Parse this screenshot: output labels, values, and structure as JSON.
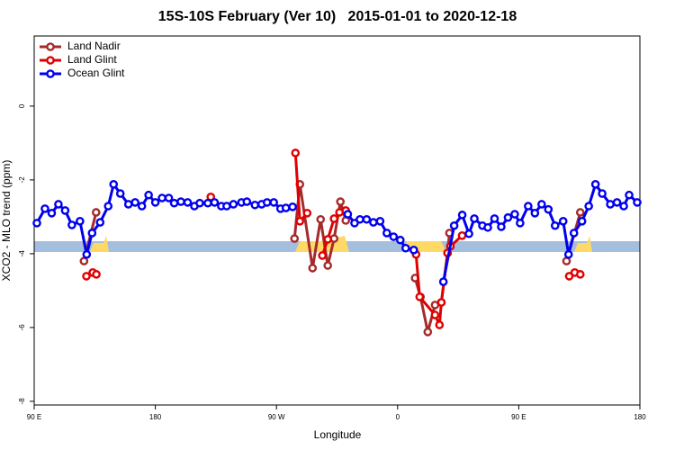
{
  "chart_data": {
    "type": "line",
    "title": "15S-10S February (Ver 10)   2015-01-01 to 2020-12-18",
    "xlabel": "Longitude",
    "ylabel": "XCO2 - MLO trend (ppm)",
    "xlim": [
      90,
      540
    ],
    "ylim": [
      -8.1,
      1.9
    ],
    "xticks": [
      {
        "value": 90,
        "label": "90 E"
      },
      180,
      {
        "value": 270,
        "label": "90 W"
      },
      {
        "value": 360,
        "label": "0"
      },
      {
        "value": 450,
        "label": "90 E"
      },
      {
        "value": 540,
        "label": "180"
      }
    ],
    "yticks": [
      0,
      -2,
      -4,
      -6,
      -8
    ],
    "legend": "top-left",
    "series": [
      {
        "name": "Land Nadir",
        "color": "#a52a2a",
        "x": [
          127,
          136,
          null,
          283.4,
          287.4,
          296.8,
          302.8,
          308.1,
          312.8,
          317.5,
          321.5,
          null,
          373,
          377,
          382.4,
          387.8,
          392.5,
          397.1,
          398.5,
          null,
          485.5,
          495.7
        ],
        "values": [
          -4.2,
          -2.88,
          null,
          -3.59,
          -2.12,
          -4.39,
          -3.07,
          -4.32,
          -3.59,
          -2.59,
          -3.1,
          null,
          -4.66,
          -5.17,
          -6.12,
          -5.39,
          -5.32,
          -3.98,
          -3.44,
          null,
          -4.2,
          -2.88
        ]
      },
      {
        "name": "Land Glint",
        "color": "#e00000",
        "x": [
          128.8,
          133.5,
          136.2,
          null,
          221.2,
          null,
          284.1,
          287.4,
          292.8,
          null,
          304.1,
          308.1,
          312.8,
          316.8,
          321.5,
          null,
          373.7,
          376.4,
          387.8,
          391.1,
          392.5,
          397.1,
          399.2,
          407.9,
          null,
          487.5,
          491.6,
          495.7
        ],
        "values": [
          -4.61,
          -4.51,
          -4.56,
          null,
          -2.46,
          null,
          -1.27,
          -3.12,
          -2.9,
          null,
          -4.05,
          -3.61,
          -3.05,
          -2.88,
          -2.83,
          null,
          -4.02,
          -5.17,
          -5.66,
          -5.93,
          -5.32,
          -3.98,
          -3.8,
          -3.51,
          null,
          -4.61,
          -4.51,
          -4.56
        ]
      },
      {
        "name": "Ocean Glint",
        "color": "#0000ee",
        "x": [
          92,
          98,
          103,
          108,
          113,
          118,
          124,
          129,
          133,
          139,
          145,
          149,
          154,
          160,
          165,
          170,
          175,
          180,
          185,
          190,
          194,
          199,
          204,
          209,
          213,
          219,
          224,
          229,
          233,
          238,
          244,
          248,
          254,
          259,
          263,
          268,
          273,
          277,
          282,
          null,
          323,
          328,
          332,
          337,
          342,
          347,
          352,
          357,
          362,
          366,
          372,
          null,
          394,
          402,
          408,
          413,
          417,
          423,
          427,
          432,
          437,
          442,
          447,
          451,
          457,
          462,
          467,
          472,
          477,
          483,
          487,
          491,
          497,
          502,
          507,
          512,
          518,
          523,
          528,
          532,
          538
        ],
        "values": [
          -3.17,
          -2.78,
          -2.9,
          -2.66,
          -2.83,
          -3.22,
          -3.12,
          -4.02,
          -3.44,
          -3.15,
          -2.71,
          -2.12,
          -2.37,
          -2.66,
          -2.61,
          -2.71,
          -2.41,
          -2.61,
          -2.49,
          -2.49,
          -2.63,
          -2.59,
          -2.61,
          -2.71,
          -2.63,
          -2.63,
          -2.61,
          -2.71,
          -2.71,
          -2.66,
          -2.61,
          -2.59,
          -2.68,
          -2.66,
          -2.61,
          -2.61,
          -2.78,
          -2.76,
          -2.73,
          null,
          -2.93,
          -3.17,
          -3.07,
          -3.07,
          -3.15,
          -3.12,
          -3.44,
          -3.54,
          -3.63,
          -3.85,
          -3.9,
          null,
          -4.76,
          -3.24,
          -2.95,
          -3.46,
          -3.05,
          -3.24,
          -3.29,
          -3.05,
          -3.27,
          -3.02,
          -2.93,
          -3.17,
          -2.71,
          -2.9,
          -2.66,
          -2.8,
          -3.24,
          -3.12,
          -4.02,
          -3.44,
          -3.12,
          -2.71,
          -2.12,
          -2.37,
          -2.66,
          -2.61,
          -2.71,
          -2.41,
          -2.61
        ]
      }
    ]
  }
}
